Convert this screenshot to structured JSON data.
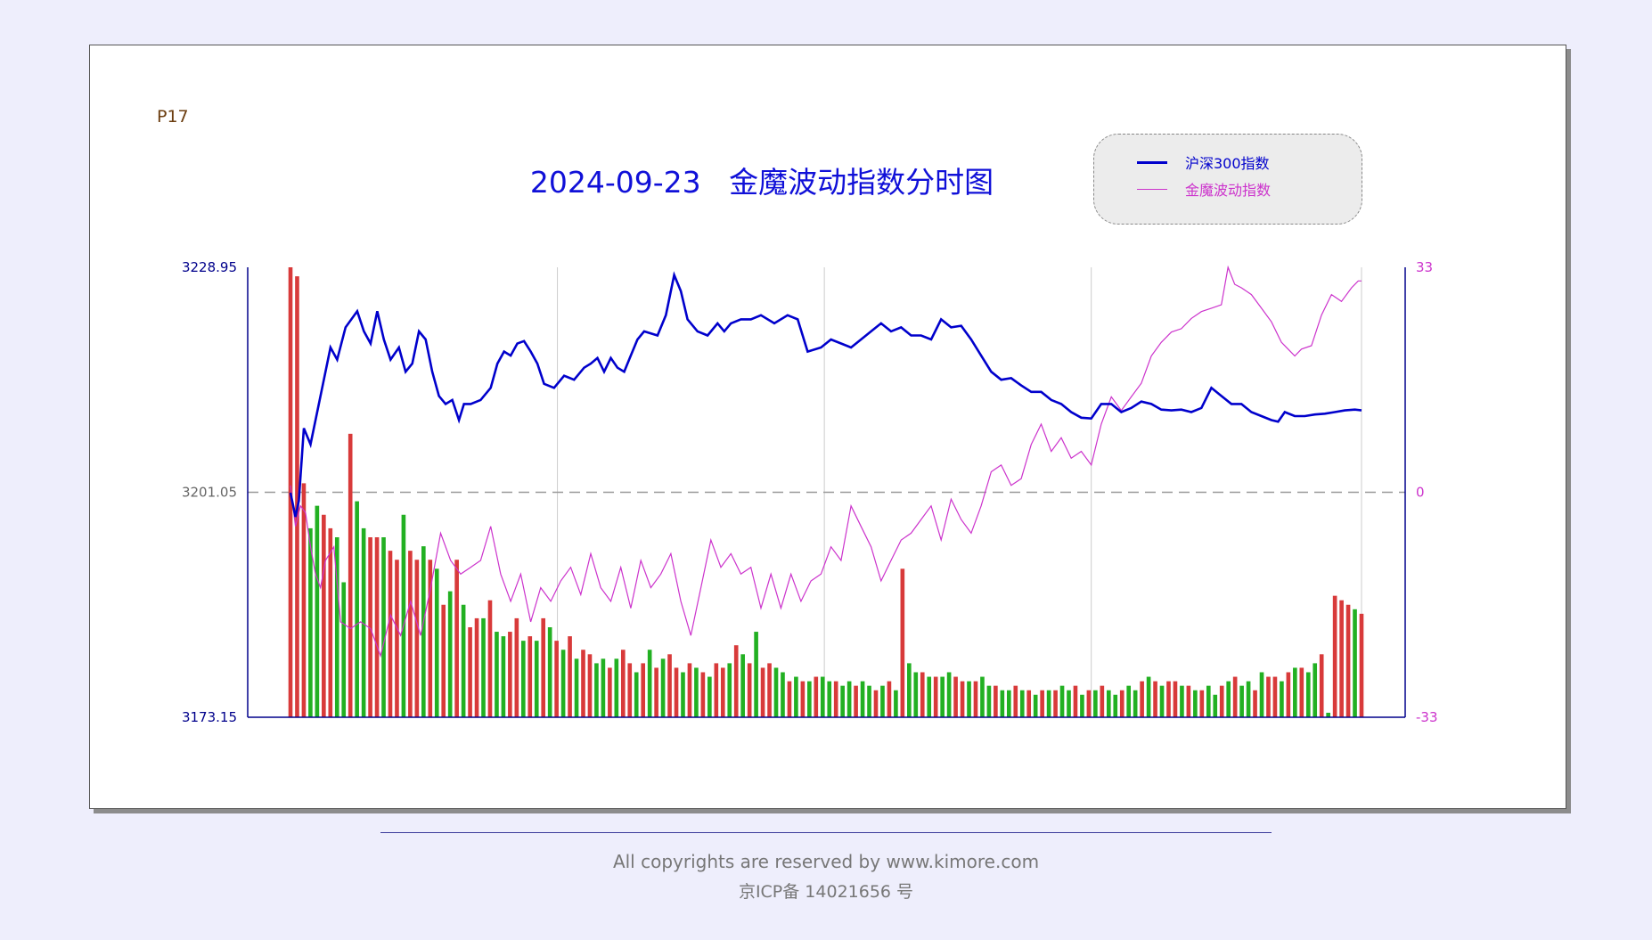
{
  "page_tag": "P17",
  "footer": {
    "copyright": "All copyrights are reserved by www.kimore.com",
    "icp": "京ICP备 14021656 号"
  },
  "colors": {
    "index_line": "#0000cc",
    "mowave_line": "#cc33cc",
    "axis_left": "#00008b",
    "axis_right": "#cc33cc",
    "vol_up": "#d83a3a",
    "vol_down": "#22b022"
  },
  "chart_data": {
    "type": "line",
    "title": "2024-09-23   金魔波动指数分时图",
    "legend_position": "top-right",
    "grid": true,
    "series": [
      {
        "name": "沪深300指数",
        "axis": "left",
        "points": [
          [
            0,
            3201.0
          ],
          [
            3,
            3198.0
          ],
          [
            5,
            3200.0
          ],
          [
            8,
            3209.0
          ],
          [
            12,
            3207.0
          ],
          [
            18,
            3213.0
          ],
          [
            24,
            3219.0
          ],
          [
            28,
            3217.5
          ],
          [
            33,
            3221.5
          ],
          [
            40,
            3223.5
          ],
          [
            44,
            3221.0
          ],
          [
            48,
            3219.5
          ],
          [
            52,
            3223.5
          ],
          [
            56,
            3220.0
          ],
          [
            60,
            3217.5
          ],
          [
            65,
            3219.0
          ],
          [
            69,
            3216.0
          ],
          [
            73,
            3217.0
          ],
          [
            77,
            3221.0
          ],
          [
            81,
            3220.0
          ],
          [
            85,
            3216.0
          ],
          [
            89,
            3213.0
          ],
          [
            93,
            3212.0
          ],
          [
            97,
            3212.5
          ],
          [
            101,
            3210.0
          ],
          [
            104,
            3212.0
          ],
          [
            108,
            3212.0
          ],
          [
            114,
            3212.5
          ],
          [
            120,
            3214.0
          ],
          [
            124,
            3217.0
          ],
          [
            128,
            3218.5
          ],
          [
            132,
            3218.0
          ],
          [
            136,
            3219.5
          ],
          [
            140,
            3219.8
          ],
          [
            144,
            3218.5
          ],
          [
            148,
            3217.0
          ],
          [
            152,
            3214.5
          ],
          [
            158,
            3214.0
          ],
          [
            164,
            3215.5
          ],
          [
            170,
            3215.0
          ],
          [
            176,
            3216.5
          ],
          [
            180,
            3217.0
          ],
          [
            184,
            3217.7
          ],
          [
            188,
            3216.0
          ],
          [
            192,
            3217.7
          ],
          [
            196,
            3216.5
          ],
          [
            200,
            3216.0
          ],
          [
            204,
            3218.0
          ],
          [
            208,
            3220.0
          ],
          [
            212,
            3221.0
          ],
          [
            220,
            3220.5
          ],
          [
            225,
            3223.0
          ],
          [
            230,
            3228.0
          ],
          [
            234,
            3226.0
          ],
          [
            238,
            3222.5
          ],
          [
            244,
            3221.0
          ],
          [
            250,
            3220.5
          ],
          [
            256,
            3222.0
          ],
          [
            260,
            3221.0
          ],
          [
            264,
            3222.0
          ],
          [
            270,
            3222.5
          ],
          [
            276,
            3222.5
          ],
          [
            282,
            3223.0
          ],
          [
            290,
            3222.0
          ],
          [
            298,
            3223.0
          ],
          [
            304,
            3222.5
          ],
          [
            310,
            3218.5
          ],
          [
            318,
            3219.0
          ],
          [
            324,
            3220.0
          ],
          [
            330,
            3219.5
          ],
          [
            336,
            3219.0
          ],
          [
            342,
            3220.0
          ],
          [
            348,
            3221.0
          ],
          [
            354,
            3222.0
          ],
          [
            360,
            3221.0
          ],
          [
            366,
            3221.5
          ],
          [
            372,
            3220.5
          ],
          [
            378,
            3220.5
          ],
          [
            384,
            3220.0
          ],
          [
            390,
            3222.5
          ],
          [
            396,
            3221.5
          ],
          [
            402,
            3221.7
          ],
          [
            408,
            3220.0
          ],
          [
            414,
            3218.0
          ],
          [
            420,
            3216.0
          ],
          [
            426,
            3215.0
          ],
          [
            432,
            3215.2
          ],
          [
            438,
            3214.3
          ],
          [
            444,
            3213.5
          ],
          [
            450,
            3213.5
          ],
          [
            456,
            3212.5
          ],
          [
            462,
            3212.0
          ],
          [
            468,
            3211.0
          ],
          [
            474,
            3210.3
          ],
          [
            480,
            3210.2
          ],
          [
            486,
            3212.0
          ],
          [
            492,
            3212.0
          ],
          [
            498,
            3211.0
          ],
          [
            504,
            3211.5
          ],
          [
            510,
            3212.3
          ],
          [
            516,
            3212.0
          ],
          [
            522,
            3211.3
          ],
          [
            528,
            3211.2
          ],
          [
            534,
            3211.3
          ],
          [
            540,
            3211.0
          ],
          [
            546,
            3211.5
          ],
          [
            552,
            3214.0
          ],
          [
            558,
            3213.0
          ],
          [
            564,
            3212.0
          ],
          [
            570,
            3212.0
          ],
          [
            576,
            3211.0
          ],
          [
            582,
            3210.5
          ],
          [
            588,
            3210.0
          ],
          [
            592,
            3209.8
          ],
          [
            596,
            3211.0
          ],
          [
            602,
            3210.5
          ],
          [
            608,
            3210.5
          ],
          [
            614,
            3210.7
          ],
          [
            620,
            3210.8
          ],
          [
            626,
            3211.0
          ],
          [
            632,
            3211.2
          ],
          [
            638,
            3211.3
          ],
          [
            642,
            3211.2
          ]
        ]
      },
      {
        "name": "金魔波动指数",
        "axis": "right",
        "points": [
          [
            0,
            1.0
          ],
          [
            3,
            -5.0
          ],
          [
            6,
            -2.0
          ],
          [
            9,
            -3.0
          ],
          [
            12,
            -8.0
          ],
          [
            15,
            -12.0
          ],
          [
            18,
            -14.0
          ],
          [
            21,
            -10.0
          ],
          [
            26,
            -8.0
          ],
          [
            30,
            -19.0
          ],
          [
            36,
            -20.0
          ],
          [
            42,
            -19.0
          ],
          [
            48,
            -20.0
          ],
          [
            54,
            -24.0
          ],
          [
            60,
            -18.0
          ],
          [
            66,
            -21.0
          ],
          [
            72,
            -16.0
          ],
          [
            78,
            -21.0
          ],
          [
            84,
            -14.0
          ],
          [
            90,
            -6.0
          ],
          [
            96,
            -10.0
          ],
          [
            102,
            -12.0
          ],
          [
            108,
            -11.0
          ],
          [
            114,
            -10.0
          ],
          [
            120,
            -5.0
          ],
          [
            126,
            -12.0
          ],
          [
            132,
            -16.0
          ],
          [
            138,
            -12.0
          ],
          [
            144,
            -19.0
          ],
          [
            150,
            -14.0
          ],
          [
            156,
            -16.0
          ],
          [
            162,
            -13.0
          ],
          [
            168,
            -11.0
          ],
          [
            174,
            -15.0
          ],
          [
            180,
            -9.0
          ],
          [
            186,
            -14.0
          ],
          [
            192,
            -16.0
          ],
          [
            198,
            -11.0
          ],
          [
            204,
            -17.0
          ],
          [
            210,
            -10.0
          ],
          [
            216,
            -14.0
          ],
          [
            222,
            -12.0
          ],
          [
            228,
            -9.0
          ],
          [
            234,
            -16.0
          ],
          [
            240,
            -21.0
          ],
          [
            246,
            -14.0
          ],
          [
            252,
            -7.0
          ],
          [
            258,
            -11.0
          ],
          [
            264,
            -9.0
          ],
          [
            270,
            -12.0
          ],
          [
            276,
            -11.0
          ],
          [
            282,
            -17.0
          ],
          [
            288,
            -12.0
          ],
          [
            294,
            -17.0
          ],
          [
            300,
            -12.0
          ],
          [
            306,
            -16.0
          ],
          [
            312,
            -13.0
          ],
          [
            318,
            -12.0
          ],
          [
            324,
            -8.0
          ],
          [
            330,
            -10.0
          ],
          [
            336,
            -2.0
          ],
          [
            342,
            -5.0
          ],
          [
            348,
            -8.0
          ],
          [
            354,
            -13.0
          ],
          [
            360,
            -10.0
          ],
          [
            366,
            -7.0
          ],
          [
            372,
            -6.0
          ],
          [
            378,
            -4.0
          ],
          [
            384,
            -2.0
          ],
          [
            390,
            -7.0
          ],
          [
            396,
            -1.0
          ],
          [
            402,
            -4.0
          ],
          [
            408,
            -6.0
          ],
          [
            414,
            -2.0
          ],
          [
            420,
            3.0
          ],
          [
            426,
            4.0
          ],
          [
            432,
            1.0
          ],
          [
            438,
            2.0
          ],
          [
            444,
            7.0
          ],
          [
            450,
            10.0
          ],
          [
            456,
            6.0
          ],
          [
            462,
            8.0
          ],
          [
            468,
            5.0
          ],
          [
            474,
            6.0
          ],
          [
            480,
            4.0
          ],
          [
            486,
            10.0
          ],
          [
            492,
            14.0
          ],
          [
            498,
            12.0
          ],
          [
            504,
            14.0
          ],
          [
            510,
            16.0
          ],
          [
            516,
            20.0
          ],
          [
            522,
            22.0
          ],
          [
            528,
            23.5
          ],
          [
            534,
            24.0
          ],
          [
            540,
            25.5
          ],
          [
            546,
            26.5
          ],
          [
            552,
            27.0
          ],
          [
            558,
            27.5
          ],
          [
            562,
            33.0
          ],
          [
            566,
            30.5
          ],
          [
            570,
            30.0
          ],
          [
            576,
            29.0
          ],
          [
            582,
            27.0
          ],
          [
            588,
            25.0
          ],
          [
            594,
            22.0
          ],
          [
            598,
            21.0
          ],
          [
            602,
            20.0
          ],
          [
            606,
            21.0
          ],
          [
            612,
            21.5
          ],
          [
            618,
            26.0
          ],
          [
            624,
            29.0
          ],
          [
            630,
            28.0
          ],
          [
            636,
            30.0
          ],
          [
            640,
            31.0
          ],
          [
            642,
            31.0
          ]
        ]
      }
    ],
    "volume": {
      "bar_count": 162,
      "ylim": [
        0,
        100
      ],
      "values": [
        100,
        98,
        52,
        42,
        47,
        45,
        42,
        40,
        30,
        63,
        48,
        42,
        40,
        40,
        40,
        37,
        35,
        45,
        37,
        35,
        38,
        35,
        33,
        25,
        28,
        35,
        25,
        20,
        22,
        22,
        26,
        19,
        18,
        19,
        22,
        17,
        18,
        17,
        22,
        20,
        17,
        15,
        18,
        13,
        15,
        14,
        12,
        13,
        11,
        13,
        15,
        12,
        10,
        12,
        15,
        11,
        13,
        14,
        11,
        10,
        12,
        11,
        10,
        9,
        12,
        11,
        12,
        16,
        14,
        12,
        19,
        11,
        12,
        11,
        10,
        8,
        9,
        8,
        8,
        9,
        9,
        8,
        8,
        7,
        8,
        7,
        8,
        7,
        6,
        7,
        8,
        6,
        33,
        12,
        10,
        10,
        9,
        9,
        9,
        10,
        9,
        8,
        8,
        8,
        9,
        7,
        7,
        6,
        6,
        7,
        6,
        6,
        5,
        6,
        6,
        6,
        7,
        6,
        7,
        5,
        6,
        6,
        7,
        6,
        5,
        6,
        7,
        6,
        8,
        9,
        8,
        7,
        8,
        8,
        7,
        7,
        6,
        6,
        7,
        5,
        7,
        8,
        9,
        7,
        8,
        6,
        10,
        9,
        9,
        8,
        10,
        11,
        11,
        10,
        12,
        14,
        1,
        27,
        26,
        25,
        24,
        23
      ],
      "up": [
        1,
        1,
        1,
        0,
        0,
        1,
        1,
        0,
        0,
        1,
        0,
        0,
        1,
        1,
        0,
        1,
        1,
        0,
        1,
        1,
        0,
        1,
        0,
        1,
        0,
        1,
        0,
        1,
        1,
        0,
        1,
        0,
        0,
        1,
        1,
        0,
        1,
        0,
        1,
        0,
        1,
        0,
        1,
        0,
        1,
        1,
        0,
        0,
        1,
        0,
        1,
        1,
        0,
        1,
        0,
        1,
        0,
        1,
        1,
        0,
        1,
        0,
        1,
        0,
        1,
        1,
        0,
        1,
        0,
        1,
        0,
        1,
        1,
        0,
        0,
        1,
        0,
        1,
        0,
        1,
        0,
        0,
        1,
        0,
        0,
        1,
        0,
        0,
        1,
        0,
        1,
        0,
        1,
        0,
        0,
        1,
        0,
        1,
        0,
        0,
        1,
        1,
        0,
        1,
        0,
        0,
        1,
        0,
        0,
        1,
        0,
        1,
        0,
        1,
        0,
        1,
        0,
        0,
        1,
        0,
        1,
        0,
        1,
        0,
        0,
        1,
        0,
        0,
        1,
        0,
        1,
        0,
        1,
        1,
        0,
        1,
        0,
        1,
        0,
        0,
        1,
        0,
        1,
        0,
        0,
        1,
        0,
        1,
        1,
        0,
        1,
        0,
        1,
        0,
        0,
        1,
        0,
        1,
        1,
        1,
        0,
        1
      ]
    },
    "x_range": [
      0,
      642
    ],
    "gridlines_x": [
      160,
      320,
      480,
      642
    ],
    "left_axis": {
      "ylim": [
        3173.15,
        3228.95
      ],
      "ticks": [
        "3228.95",
        "3201.05",
        "3173.15"
      ],
      "baseline": 3201.05
    },
    "right_axis": {
      "ylim": [
        -33,
        33
      ],
      "ticks": [
        "33",
        "0",
        "-33"
      ]
    }
  }
}
